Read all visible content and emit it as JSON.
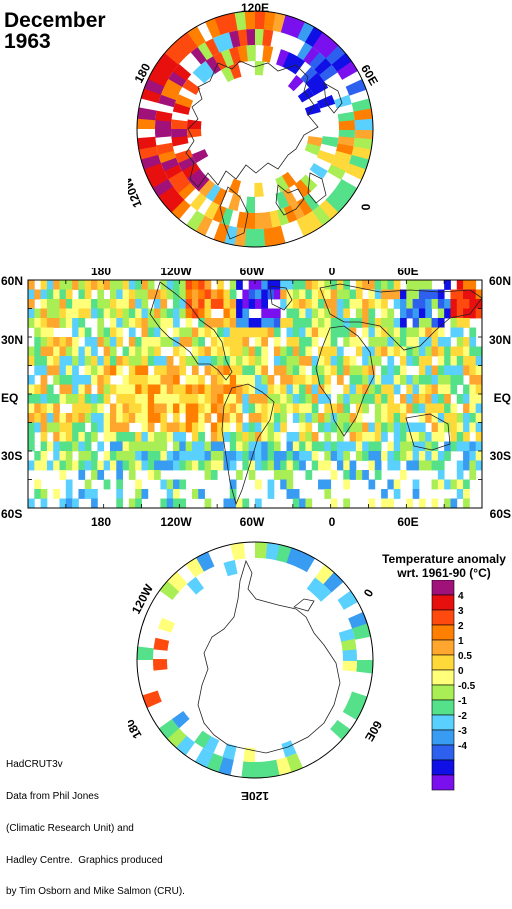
{
  "title": {
    "month": "December",
    "year": "1963"
  },
  "north_map": {
    "labels": {
      "top": "120E",
      "right": "60E",
      "left": "180",
      "bottom_left": "120W",
      "bottom_right": "0"
    }
  },
  "main_map": {
    "top_labels": [
      "180",
      "120W",
      "60W",
      "0",
      "60E"
    ],
    "bottom_labels": [
      "180",
      "120W",
      "60W",
      "0",
      "60E"
    ],
    "lat_labels": [
      "60N",
      "30N",
      "EQ",
      "30S",
      "60S"
    ]
  },
  "south_map": {
    "labels": {
      "upper_left": "120W",
      "right": "0",
      "lower_left": "180",
      "lower_right": "60E",
      "bottom": "120E"
    }
  },
  "legend": {
    "title_line1": "Temperature anomaly",
    "title_line2": "wrt. 1961-90  (°C)",
    "ticks": [
      "4",
      "3",
      "2",
      "1",
      "0.5",
      "0",
      "-0.5",
      "-1",
      "-2",
      "-3",
      "-4"
    ],
    "colors": [
      "#a0127a",
      "#e80f0f",
      "#ff4a0f",
      "#ff7f00",
      "#ffa62e",
      "#ffd83a",
      "#ffff7a",
      "#a9ee54",
      "#55e08a",
      "#5ad0ff",
      "#389cf2",
      "#2e60f0",
      "#1010e6",
      "#7a10ee"
    ]
  },
  "credits": {
    "line1": "HadCRUT3v",
    "line2": "Data from Phil Jones",
    "line3": "(Climatic Research Unit) and",
    "line4": "Hadley Centre.  Graphics produced",
    "line5": "by Tim Osborn and Mike Salmon (CRU)."
  }
}
